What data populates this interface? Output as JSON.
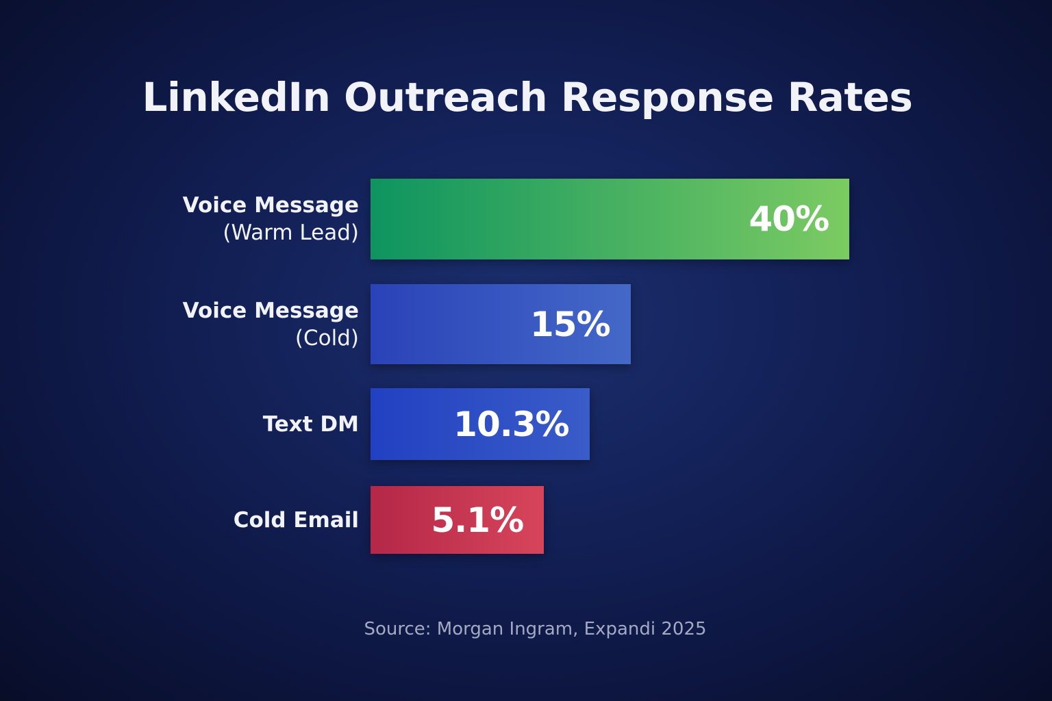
{
  "chart_data": {
    "type": "bar",
    "orientation": "horizontal",
    "title": "LinkedIn Outreach Response Rates",
    "categories": [
      {
        "line1": "Voice Message",
        "line2": "(Warm Lead)"
      },
      {
        "line1": "Voice Message",
        "line2": "(Cold)"
      },
      {
        "line1": "Text DM",
        "line2": ""
      },
      {
        "line1": "Cold Email",
        "line2": ""
      }
    ],
    "values": [
      40,
      15,
      10.3,
      5.1
    ],
    "value_labels": [
      "40%",
      "15%",
      "10.3%",
      "5.1%"
    ],
    "unit": "%",
    "colors": [
      [
        "#0e9460",
        "#7ccb62"
      ],
      [
        "#2a43b8",
        "#4468c8"
      ],
      [
        "#2240c2",
        "#3a5cc8"
      ],
      [
        "#b52748",
        "#d6455a"
      ]
    ],
    "grid": false,
    "legend": "none",
    "source": "Source: Morgan Ingram, Expandi 2025"
  }
}
